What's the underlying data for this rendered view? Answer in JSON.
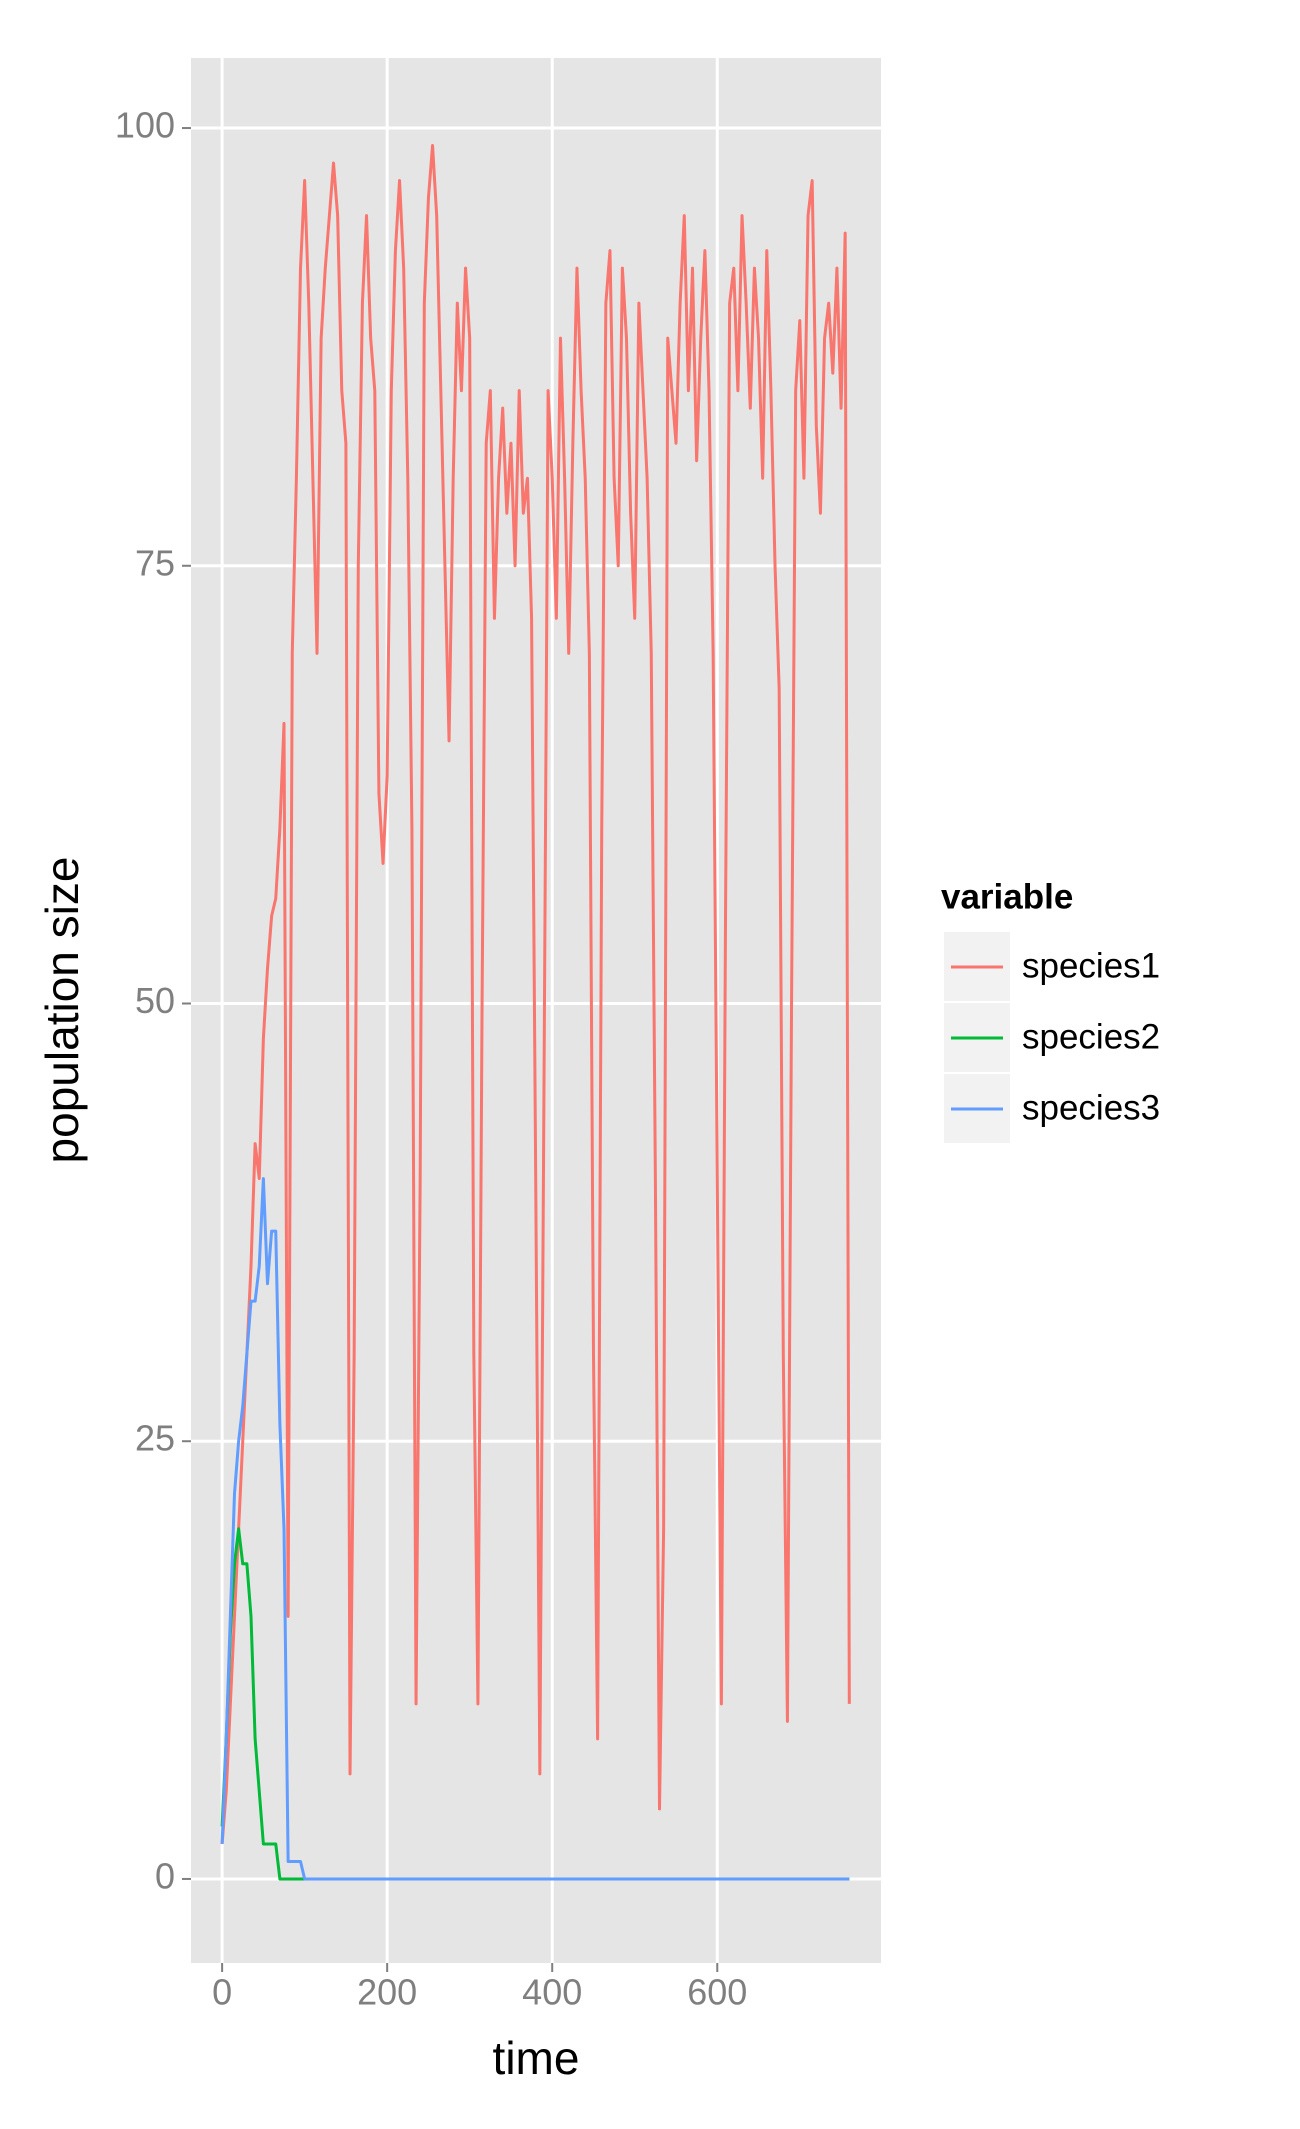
{
  "chart_data": {
    "type": "line",
    "x_label": "time",
    "y_label": "population size",
    "legend_title": "variable",
    "legend": "right",
    "grid": true,
    "xlim": [
      -37.7,
      798.4
    ],
    "ylim": [
      -4.8,
      104.0
    ],
    "xticks": [
      0,
      200,
      400,
      600
    ],
    "yticks": [
      0,
      25,
      50,
      75,
      100
    ],
    "x": [
      0,
      5,
      10,
      15,
      20,
      25,
      30,
      35,
      40,
      45,
      50,
      55,
      60,
      65,
      70,
      75,
      80,
      85,
      90,
      95,
      100,
      105,
      110,
      115,
      120,
      125,
      130,
      135,
      140,
      145,
      150,
      155,
      160,
      165,
      170,
      175,
      180,
      185,
      190,
      195,
      200,
      205,
      210,
      215,
      220,
      225,
      230,
      235,
      240,
      245,
      250,
      255,
      260,
      265,
      270,
      275,
      280,
      285,
      290,
      295,
      300,
      305,
      310,
      315,
      320,
      325,
      330,
      335,
      340,
      345,
      350,
      355,
      360,
      365,
      370,
      375,
      380,
      385,
      390,
      395,
      400,
      405,
      410,
      415,
      420,
      425,
      430,
      435,
      440,
      445,
      450,
      455,
      460,
      465,
      470,
      475,
      480,
      485,
      490,
      495,
      500,
      505,
      510,
      515,
      520,
      525,
      530,
      535,
      540,
      545,
      550,
      555,
      560,
      565,
      570,
      575,
      580,
      585,
      590,
      595,
      600,
      605,
      610,
      615,
      620,
      625,
      630,
      635,
      640,
      645,
      650,
      655,
      660,
      665,
      670,
      675,
      680,
      685,
      690,
      695,
      700,
      705,
      710,
      715,
      720,
      725,
      730,
      735,
      740,
      745,
      750,
      755,
      760
    ],
    "series": [
      {
        "name": "species1",
        "color": "#F8766D",
        "values": [
          2,
          5,
          10,
          15,
          20,
          25,
          30,
          35,
          42,
          40,
          48,
          52,
          55,
          56,
          60,
          66,
          15,
          70,
          80,
          92,
          97,
          90,
          80,
          70,
          88,
          92,
          95,
          98,
          95,
          85,
          82,
          6,
          30,
          75,
          90,
          95,
          88,
          85,
          62,
          58,
          63,
          85,
          93,
          97,
          92,
          80,
          60,
          10,
          40,
          90,
          96,
          99,
          95,
          85,
          75,
          65,
          80,
          90,
          85,
          92,
          88,
          30,
          10,
          50,
          82,
          85,
          72,
          80,
          84,
          78,
          82,
          75,
          85,
          78,
          80,
          72,
          40,
          6,
          45,
          85,
          80,
          72,
          88,
          80,
          70,
          82,
          92,
          85,
          80,
          70,
          30,
          8,
          60,
          90,
          93,
          80,
          75,
          92,
          88,
          78,
          72,
          90,
          85,
          80,
          70,
          40,
          4,
          20,
          88,
          85,
          82,
          90,
          95,
          85,
          92,
          81,
          88,
          93,
          85,
          70,
          40,
          10,
          55,
          90,
          92,
          85,
          95,
          90,
          84,
          92,
          88,
          80,
          93,
          85,
          75,
          68,
          30,
          9,
          50,
          85,
          89,
          80,
          95,
          97,
          83,
          78,
          88,
          90,
          86,
          92,
          84,
          94,
          10
        ]
      },
      {
        "name": "species2",
        "color": "#00BA38",
        "values": [
          3,
          8,
          14,
          18,
          20,
          18,
          18,
          15,
          8,
          5,
          2,
          2,
          2,
          2,
          0,
          0,
          0,
          0,
          0,
          0,
          0,
          0,
          0,
          0,
          0,
          0,
          0,
          0,
          0,
          0,
          0,
          0,
          0,
          0,
          0,
          0,
          0,
          0,
          0,
          0,
          0,
          0,
          0,
          0,
          0,
          0,
          0,
          0,
          0,
          0,
          0,
          0,
          0,
          0,
          0,
          0,
          0,
          0,
          0,
          0,
          0,
          0,
          0,
          0,
          0,
          0,
          0,
          0,
          0,
          0,
          0,
          0,
          0,
          0,
          0,
          0,
          0,
          0,
          0,
          0,
          0,
          0,
          0,
          0,
          0,
          0,
          0,
          0,
          0,
          0,
          0,
          0,
          0,
          0,
          0,
          0,
          0,
          0,
          0,
          0,
          0,
          0,
          0,
          0,
          0,
          0,
          0,
          0,
          0,
          0,
          0,
          0,
          0,
          0,
          0,
          0,
          0,
          0,
          0,
          0,
          0,
          0,
          0,
          0,
          0,
          0,
          0,
          0,
          0,
          0,
          0,
          0,
          0,
          0,
          0,
          0,
          0,
          0,
          0,
          0,
          0,
          0,
          0,
          0,
          0,
          0,
          0,
          0,
          0,
          0,
          0,
          0,
          0
        ]
      },
      {
        "name": "species3",
        "color": "#619CFF",
        "values": [
          2,
          8,
          15,
          22,
          25,
          27,
          30,
          33,
          33,
          35,
          40,
          34,
          37,
          37,
          26,
          20,
          1,
          1,
          1,
          1,
          0,
          0,
          0,
          0,
          0,
          0,
          0,
          0,
          0,
          0,
          0,
          0,
          0,
          0,
          0,
          0,
          0,
          0,
          0,
          0,
          0,
          0,
          0,
          0,
          0,
          0,
          0,
          0,
          0,
          0,
          0,
          0,
          0,
          0,
          0,
          0,
          0,
          0,
          0,
          0,
          0,
          0,
          0,
          0,
          0,
          0,
          0,
          0,
          0,
          0,
          0,
          0,
          0,
          0,
          0,
          0,
          0,
          0,
          0,
          0,
          0,
          0,
          0,
          0,
          0,
          0,
          0,
          0,
          0,
          0,
          0,
          0,
          0,
          0,
          0,
          0,
          0,
          0,
          0,
          0,
          0,
          0,
          0,
          0,
          0,
          0,
          0,
          0,
          0,
          0,
          0,
          0,
          0,
          0,
          0,
          0,
          0,
          0,
          0,
          0,
          0,
          0,
          0,
          0,
          0,
          0,
          0,
          0,
          0,
          0,
          0,
          0,
          0,
          0,
          0,
          0,
          0,
          0,
          0,
          0,
          0,
          0,
          0,
          0,
          0,
          0,
          0,
          0,
          0,
          0,
          0,
          0,
          0
        ]
      }
    ]
  }
}
